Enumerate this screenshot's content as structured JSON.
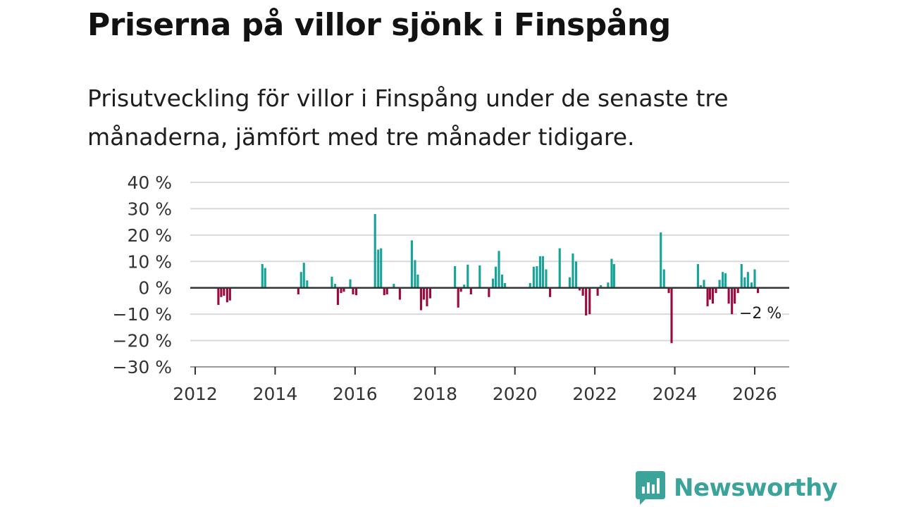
{
  "title": "Priserna på villor sjönk i Finspång",
  "subtitle": "Prisutveckling för villor i Finspång under de senaste tre månaderna, jämfört med tre månader tidigare.",
  "brand": {
    "name": "Newsworthy",
    "color": "#3aa39a"
  },
  "colors": {
    "positive": "#16a398",
    "negative": "#9b0a3f",
    "grid": "#d9d9d9",
    "zero": "#333333"
  },
  "chart_data": {
    "type": "bar",
    "title": "Priserna på villor sjönk i Finspång",
    "ylabel": "",
    "xlabel": "",
    "ylim": [
      -30,
      40
    ],
    "xlim": [
      2012,
      2026.85
    ],
    "y_ticks": [
      40,
      30,
      20,
      10,
      0,
      -10,
      -20,
      -30
    ],
    "y_tick_labels": [
      "40 %",
      "30 %",
      "20 %",
      "10 %",
      "0 %",
      "−10 %",
      "−20 %",
      "−30 %"
    ],
    "x_ticks": [
      2012,
      2014,
      2016,
      2018,
      2020,
      2022,
      2024,
      2026
    ],
    "x_tick_labels": [
      "2012",
      "2014",
      "2016",
      "2018",
      "2020",
      "2022",
      "2024",
      "2026"
    ],
    "bar_width_years": 0.055,
    "annotation": {
      "text": "−2 %",
      "x": 2026.15,
      "y": -2
    },
    "points": [
      {
        "x": 2012.58,
        "v": -6.5
      },
      {
        "x": 2012.65,
        "v": -3.5
      },
      {
        "x": 2012.72,
        "v": -3.0
      },
      {
        "x": 2012.8,
        "v": -5.5
      },
      {
        "x": 2012.87,
        "v": -4.8
      },
      {
        "x": 2013.68,
        "v": 9.0
      },
      {
        "x": 2013.75,
        "v": 7.5
      },
      {
        "x": 2014.58,
        "v": -2.5
      },
      {
        "x": 2014.65,
        "v": 6.0
      },
      {
        "x": 2014.72,
        "v": 9.5
      },
      {
        "x": 2014.8,
        "v": 2.8
      },
      {
        "x": 2015.42,
        "v": 4.2
      },
      {
        "x": 2015.5,
        "v": 1.5
      },
      {
        "x": 2015.57,
        "v": -6.5
      },
      {
        "x": 2015.65,
        "v": -2.0
      },
      {
        "x": 2015.72,
        "v": -1.5
      },
      {
        "x": 2015.88,
        "v": 3.2
      },
      {
        "x": 2015.95,
        "v": -2.5
      },
      {
        "x": 2016.03,
        "v": -2.8
      },
      {
        "x": 2016.5,
        "v": 28.0
      },
      {
        "x": 2016.58,
        "v": 14.5
      },
      {
        "x": 2016.65,
        "v": 15.0
      },
      {
        "x": 2016.73,
        "v": -2.8
      },
      {
        "x": 2016.8,
        "v": -2.5
      },
      {
        "x": 2016.97,
        "v": 1.5
      },
      {
        "x": 2017.12,
        "v": -4.5
      },
      {
        "x": 2017.42,
        "v": 18.0
      },
      {
        "x": 2017.5,
        "v": 10.5
      },
      {
        "x": 2017.57,
        "v": 5.0
      },
      {
        "x": 2017.65,
        "v": -8.5
      },
      {
        "x": 2017.72,
        "v": -4.5
      },
      {
        "x": 2017.8,
        "v": -7.0
      },
      {
        "x": 2017.88,
        "v": -4.0
      },
      {
        "x": 2018.5,
        "v": 8.2
      },
      {
        "x": 2018.58,
        "v": -7.5
      },
      {
        "x": 2018.65,
        "v": -1.5
      },
      {
        "x": 2018.73,
        "v": 1.2
      },
      {
        "x": 2018.82,
        "v": 8.8
      },
      {
        "x": 2018.9,
        "v": -2.5
      },
      {
        "x": 2019.12,
        "v": 8.5
      },
      {
        "x": 2019.35,
        "v": -3.5
      },
      {
        "x": 2019.45,
        "v": 3.5
      },
      {
        "x": 2019.52,
        "v": 8.0
      },
      {
        "x": 2019.6,
        "v": 14.0
      },
      {
        "x": 2019.68,
        "v": 5.0
      },
      {
        "x": 2019.75,
        "v": 1.8
      },
      {
        "x": 2020.38,
        "v": 1.8
      },
      {
        "x": 2020.47,
        "v": 8.0
      },
      {
        "x": 2020.55,
        "v": 8.2
      },
      {
        "x": 2020.63,
        "v": 12.0
      },
      {
        "x": 2020.7,
        "v": 12.0
      },
      {
        "x": 2020.78,
        "v": 7.0
      },
      {
        "x": 2020.88,
        "v": -3.5
      },
      {
        "x": 2021.12,
        "v": 15.0
      },
      {
        "x": 2021.37,
        "v": 4.0
      },
      {
        "x": 2021.45,
        "v": 13.0
      },
      {
        "x": 2021.53,
        "v": 10.0
      },
      {
        "x": 2021.62,
        "v": -1.0
      },
      {
        "x": 2021.7,
        "v": -3.0
      },
      {
        "x": 2021.78,
        "v": -10.5
      },
      {
        "x": 2021.87,
        "v": -10.0
      },
      {
        "x": 2022.07,
        "v": -3.0
      },
      {
        "x": 2022.15,
        "v": 1.0
      },
      {
        "x": 2022.33,
        "v": 2.0
      },
      {
        "x": 2022.42,
        "v": 11.0
      },
      {
        "x": 2022.48,
        "v": 9.0
      },
      {
        "x": 2023.65,
        "v": 21.0
      },
      {
        "x": 2023.73,
        "v": 7.0
      },
      {
        "x": 2023.85,
        "v": -2.0
      },
      {
        "x": 2023.92,
        "v": -21.0
      },
      {
        "x": 2024.58,
        "v": 9.0
      },
      {
        "x": 2024.65,
        "v": 1.0
      },
      {
        "x": 2024.73,
        "v": 3.0
      },
      {
        "x": 2024.82,
        "v": -7.0
      },
      {
        "x": 2024.88,
        "v": -4.5
      },
      {
        "x": 2024.95,
        "v": -6.0
      },
      {
        "x": 2025.03,
        "v": -2.0
      },
      {
        "x": 2025.12,
        "v": 3.0
      },
      {
        "x": 2025.2,
        "v": 6.0
      },
      {
        "x": 2025.27,
        "v": 5.5
      },
      {
        "x": 2025.35,
        "v": -6.0
      },
      {
        "x": 2025.43,
        "v": -10.0
      },
      {
        "x": 2025.5,
        "v": -6.0
      },
      {
        "x": 2025.58,
        "v": -2.0
      },
      {
        "x": 2025.67,
        "v": 9.0
      },
      {
        "x": 2025.75,
        "v": 4.0
      },
      {
        "x": 2025.83,
        "v": 6.0
      },
      {
        "x": 2025.92,
        "v": 2.0
      },
      {
        "x": 2026.0,
        "v": 7.0
      },
      {
        "x": 2026.08,
        "v": -2.0
      }
    ]
  }
}
